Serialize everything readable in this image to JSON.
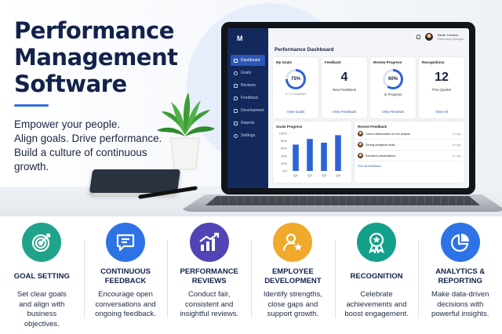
{
  "hero": {
    "title_lines": [
      "Performance",
      "Management",
      "Software"
    ],
    "subtitle_lines": [
      "Empower your people.",
      "Align goals. Drive performance.",
      "Build a culture of continuous",
      "growth."
    ],
    "accent_color": "#2f6fe0"
  },
  "app": {
    "logo": "M",
    "user": {
      "name": "Sarah Johnson",
      "role": "Marketing Manager"
    },
    "sidebar": {
      "items": [
        {
          "label": "Dashboard",
          "icon": "dashboard-icon",
          "active": true
        },
        {
          "label": "Goals",
          "icon": "target-icon"
        },
        {
          "label": "Reviews",
          "icon": "clipboard-icon"
        },
        {
          "label": "Feedback",
          "icon": "chat-icon"
        },
        {
          "label": "Development",
          "icon": "growth-icon"
        },
        {
          "label": "Reports",
          "icon": "chart-icon"
        },
        {
          "label": "Settings",
          "icon": "gear-icon"
        }
      ]
    },
    "dashboard": {
      "title": "Performance Dashboard",
      "cards": {
        "goals": {
          "title": "My Goals",
          "percent_label": "75%",
          "percent": 75,
          "sub": "3 / 4 Completed",
          "link": "View Goals"
        },
        "feedback": {
          "title": "Feedback",
          "number": "4",
          "sub": "New Feedback",
          "link": "View Feedback"
        },
        "review": {
          "title": "Review Progress",
          "percent_label": "60%",
          "percent": 60,
          "sub": "In Progress",
          "link": "View Reviews"
        },
        "recognitions": {
          "title": "Recognitions",
          "number": "12",
          "sub": "This Quarter",
          "link": "View All"
        }
      },
      "recent_feedback": {
        "title": "Recent Feedback",
        "items": [
          {
            "text": "Great collaboration on the project!",
            "ago": "2d ago"
          },
          {
            "text": "Strong analytical skills.",
            "ago": "5d ago"
          },
          {
            "text": "Excellent presentation!",
            "ago": "1w ago"
          }
        ],
        "link": "See all feedback"
      }
    }
  },
  "chart_data": {
    "type": "bar",
    "title": "Goals Progress",
    "categories": [
      "Q1",
      "Q2",
      "Q3",
      "Q4"
    ],
    "values": [
      70,
      85,
      75,
      95
    ],
    "y_ticks": [
      "100%",
      "80%",
      "60%",
      "40%",
      "20%",
      "0%"
    ],
    "ylim": [
      0,
      100
    ],
    "bar_color": "#2d62d6"
  },
  "features": [
    {
      "title": "GOAL SETTING",
      "desc": "Set clear goals\nand align with\nbusiness\nobjectives.",
      "icon": "target-icon",
      "color": "#1fa38a"
    },
    {
      "title": "CONTINUOUS\nFEEDBACK",
      "desc": "Encourage open\nconversations and\nongoing feedback.",
      "icon": "chat-icon",
      "color": "#2e73e6"
    },
    {
      "title": "PERFORMANCE\nREVIEWS",
      "desc": "Conduct fair,\nconsistent and\ninsightful reviews.",
      "icon": "growth-chart-icon",
      "color": "#5145b6"
    },
    {
      "title": "EMPLOYEE\nDEVELOPMENT",
      "desc": "Identify strengths,\nclose gaps and\nsupport growth.",
      "icon": "person-star-icon",
      "color": "#f0a92a"
    },
    {
      "title": "RECOGNITION",
      "desc": "Celebrate\nachievements and\nboost engagement.",
      "icon": "award-ribbon-icon",
      "color": "#13a08a"
    },
    {
      "title": "ANALYTICS &\nREPORTING",
      "desc": "Make data-driven\ndecisions with\npowerful insights.",
      "icon": "pie-chart-icon",
      "color": "#2e73e6"
    }
  ]
}
